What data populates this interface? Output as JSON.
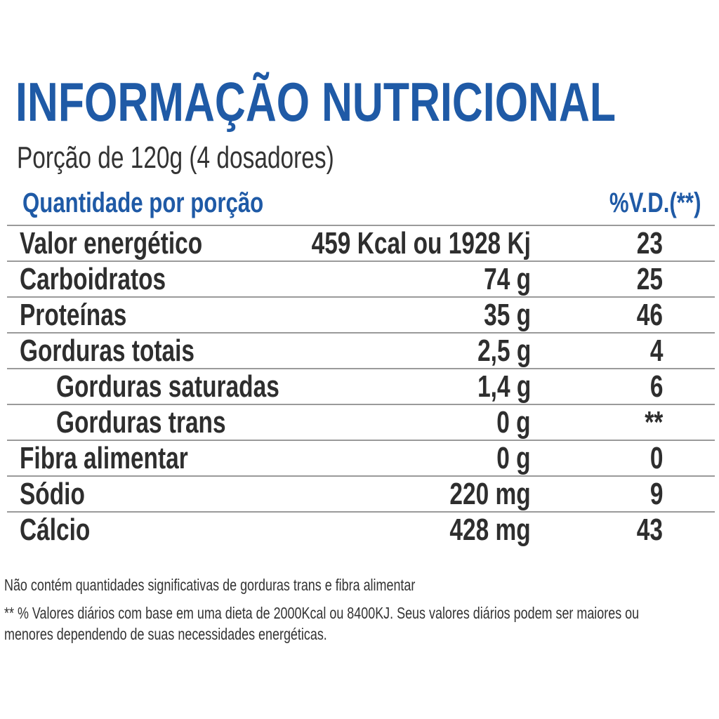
{
  "title": "INFORMAÇÃO NUTRICIONAL",
  "portion": "Porção de 120g (4 dosadores)",
  "header": {
    "quantity_label": "Quantidade por porção",
    "vd_label": "%V.D.(**)"
  },
  "rows": [
    {
      "name": "Valor energético",
      "amount": "459 Kcal ou 1928 Kj",
      "vd": "23",
      "indent": false
    },
    {
      "name": "Carboidratos",
      "amount": "74 g",
      "vd": "25",
      "indent": false
    },
    {
      "name": "Proteínas",
      "amount": "35 g",
      "vd": "46",
      "indent": false
    },
    {
      "name": "Gorduras totais",
      "amount": "2,5 g",
      "vd": "4",
      "indent": false
    },
    {
      "name": "Gorduras saturadas",
      "amount": "1,4 g",
      "vd": "6",
      "indent": true
    },
    {
      "name": "Gorduras trans",
      "amount": "0 g",
      "vd": "**",
      "indent": true
    },
    {
      "name": "Fibra alimentar",
      "amount": "0 g",
      "vd": "0",
      "indent": false
    },
    {
      "name": "Sódio",
      "amount": "220 mg",
      "vd": "9",
      "indent": false
    },
    {
      "name": "Cálcio",
      "amount": "428 mg",
      "vd": "43",
      "indent": false
    }
  ],
  "notes": {
    "line1": "Não contém quantidades significativas de gorduras trans e fibra alimentar",
    "line2a": "** % Valores diários com base em uma dieta de 2000Kcal ou 8400KJ. Seus valores diários podem ser maiores ou",
    "line2b": "menores dependendo de suas necessidades energéticas."
  },
  "colors": {
    "accent": "#1f5aa6",
    "text": "#2e2e2e",
    "divider": "#9a9a9a"
  }
}
